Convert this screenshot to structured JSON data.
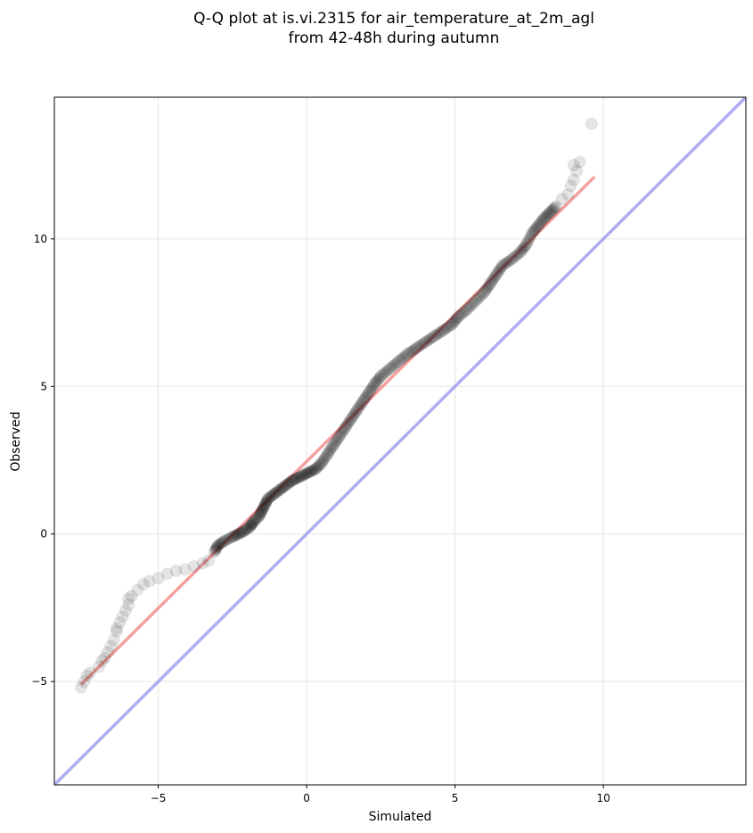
{
  "chart_data": {
    "type": "scatter",
    "title": "Q-Q plot at is.vi.2315 for air_temperature_at_2m_agl",
    "subtitle": "from 42-48h during autumn",
    "xlabel": "Simulated",
    "ylabel": "Observed",
    "xlim": [
      -8.5,
      14.8
    ],
    "ylim": [
      -8.5,
      14.8
    ],
    "xticks": [
      -5,
      0,
      5,
      10
    ],
    "yticks": [
      -5,
      0,
      5,
      10
    ],
    "xtick_labels": [
      "−5",
      "0",
      "5",
      "10"
    ],
    "ytick_labels": [
      "−5",
      "0",
      "5",
      "10"
    ],
    "grid": true,
    "points": [
      [
        -7.6,
        -5.2
      ],
      [
        -7.5,
        -5.0
      ],
      [
        -7.4,
        -4.8
      ],
      [
        -7.3,
        -4.7
      ],
      [
        -7.0,
        -4.5
      ],
      [
        -6.9,
        -4.3
      ],
      [
        -6.8,
        -4.2
      ],
      [
        -6.7,
        -4.0
      ],
      [
        -6.6,
        -3.8
      ],
      [
        -6.5,
        -3.6
      ],
      [
        -6.4,
        -3.3
      ],
      [
        -6.4,
        -3.2
      ],
      [
        -6.3,
        -3.0
      ],
      [
        -6.2,
        -2.8
      ],
      [
        -6.1,
        -2.6
      ],
      [
        -6.0,
        -2.4
      ],
      [
        -6.0,
        -2.2
      ],
      [
        -5.9,
        -2.1
      ],
      [
        -5.7,
        -1.9
      ],
      [
        -5.5,
        -1.7
      ],
      [
        -5.3,
        -1.6
      ],
      [
        -5.0,
        -1.5
      ],
      [
        -4.7,
        -1.35
      ],
      [
        -4.4,
        -1.25
      ],
      [
        -4.1,
        -1.2
      ],
      [
        -3.8,
        -1.1
      ],
      [
        -3.5,
        -1.0
      ],
      [
        -3.3,
        -0.9
      ],
      [
        -3.1,
        -0.6
      ],
      [
        -3.0,
        -0.4
      ],
      [
        -2.8,
        -0.25
      ],
      [
        -2.5,
        -0.1
      ],
      [
        -2.3,
        0.0
      ],
      [
        -2.1,
        0.1
      ],
      [
        -1.9,
        0.25
      ],
      [
        -1.8,
        0.4
      ],
      [
        -1.6,
        0.6
      ],
      [
        -1.5,
        0.8
      ],
      [
        -1.4,
        1.0
      ],
      [
        -1.3,
        1.2
      ],
      [
        -1.1,
        1.35
      ],
      [
        -0.9,
        1.5
      ],
      [
        -0.7,
        1.65
      ],
      [
        -0.5,
        1.8
      ],
      [
        -0.3,
        1.9
      ],
      [
        -0.1,
        2.0
      ],
      [
        0.1,
        2.1
      ],
      [
        0.3,
        2.2
      ],
      [
        0.5,
        2.4
      ],
      [
        0.7,
        2.7
      ],
      [
        0.9,
        3.0
      ],
      [
        1.1,
        3.3
      ],
      [
        1.3,
        3.6
      ],
      [
        1.5,
        3.9
      ],
      [
        1.7,
        4.2
      ],
      [
        1.9,
        4.5
      ],
      [
        2.1,
        4.8
      ],
      [
        2.3,
        5.1
      ],
      [
        2.5,
        5.35
      ],
      [
        2.8,
        5.6
      ],
      [
        3.1,
        5.85
      ],
      [
        3.4,
        6.1
      ],
      [
        3.7,
        6.3
      ],
      [
        4.0,
        6.5
      ],
      [
        4.3,
        6.7
      ],
      [
        4.6,
        6.9
      ],
      [
        4.9,
        7.1
      ],
      [
        5.1,
        7.35
      ],
      [
        5.4,
        7.6
      ],
      [
        5.7,
        7.9
      ],
      [
        6.0,
        8.2
      ],
      [
        6.2,
        8.5
      ],
      [
        6.4,
        8.8
      ],
      [
        6.6,
        9.1
      ],
      [
        6.9,
        9.3
      ],
      [
        7.2,
        9.55
      ],
      [
        7.4,
        9.8
      ],
      [
        7.6,
        10.2
      ],
      [
        7.8,
        10.45
      ],
      [
        8.0,
        10.7
      ],
      [
        8.2,
        10.9
      ],
      [
        8.4,
        11.1
      ],
      [
        8.6,
        11.35
      ],
      [
        8.8,
        11.5
      ],
      [
        8.9,
        11.8
      ],
      [
        9.0,
        12.0
      ],
      [
        9.1,
        12.3
      ],
      [
        9.0,
        12.5
      ],
      [
        9.2,
        12.6
      ],
      [
        9.6,
        13.9
      ]
    ],
    "series": [
      {
        "values": "points",
        "color": "#000000",
        "marker_alpha": 0.1
      },
      {
        "kind": "fit-line",
        "color": "#f08080",
        "x": [
          -7.6,
          9.7
        ],
        "y": [
          -5.1,
          12.1
        ]
      },
      {
        "kind": "identity-line",
        "color": "#9999ee",
        "x": [
          -8.5,
          14.8
        ],
        "y": [
          -8.5,
          14.8
        ]
      }
    ]
  }
}
